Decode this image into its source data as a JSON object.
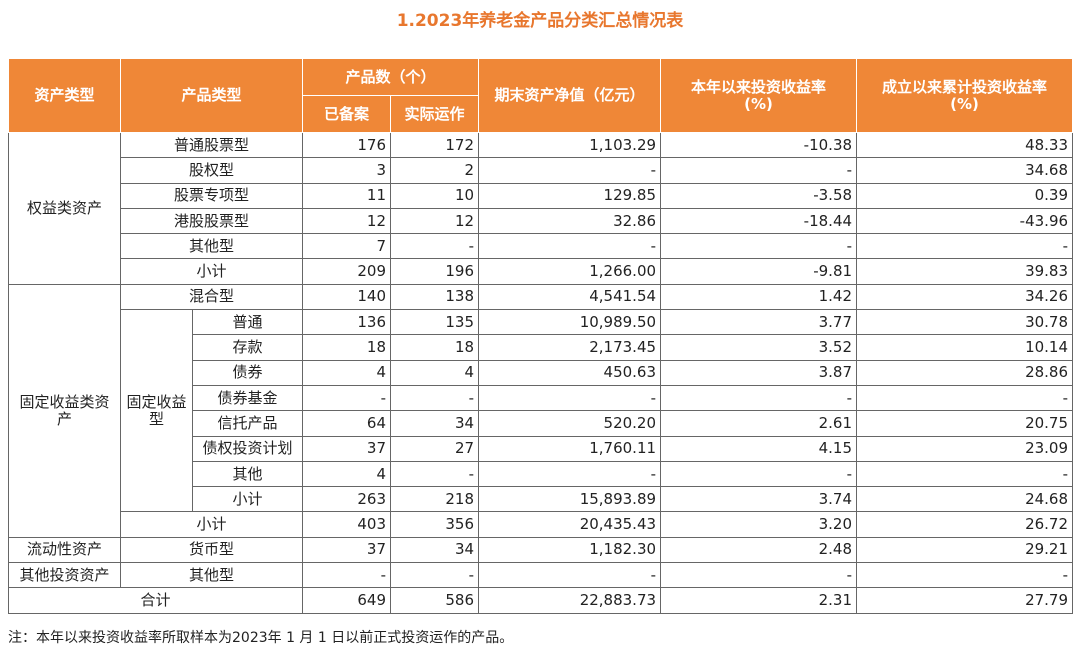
{
  "title": "1.2023年养老金产品分类汇总情况表",
  "header": {
    "asset_type": "资产类型",
    "product_type": "产品类型",
    "count": "产品数（个）",
    "filed": "已备案",
    "operating": "实际运作",
    "nav": "期末资产净值（亿元）",
    "ytd_return": "本年以来投资收益率",
    "ytd_unit": "(%)",
    "cum_return": "成立以来累计投资收益率",
    "cum_unit": "(%)"
  },
  "groups": {
    "equity": "权益类资产",
    "fixed_income": "固定收益类资产",
    "fixed_sub": "固定收益型",
    "liquidity": "流动性资产",
    "other": "其他投资资产"
  },
  "rows": [
    {
      "label": "普通股票型",
      "values": [
        "176",
        "172",
        "1,103.29",
        "-10.38",
        "48.33"
      ]
    },
    {
      "label": "股权型",
      "values": [
        "3",
        "2",
        "-",
        "-",
        "34.68"
      ]
    },
    {
      "label": "股票专项型",
      "values": [
        "11",
        "10",
        "129.85",
        "-3.58",
        "0.39"
      ]
    },
    {
      "label": "港股股票型",
      "values": [
        "12",
        "12",
        "32.86",
        "-18.44",
        "-43.96"
      ]
    },
    {
      "label": "其他型",
      "values": [
        "7",
        "-",
        "-",
        "-",
        "-"
      ]
    },
    {
      "label": "小计",
      "values": [
        "209",
        "196",
        "1,266.00",
        "-9.81",
        "39.83"
      ]
    },
    {
      "label": "混合型",
      "values": [
        "140",
        "138",
        "4,541.54",
        "1.42",
        "34.26"
      ]
    },
    {
      "label": "普通",
      "values": [
        "136",
        "135",
        "10,989.50",
        "3.77",
        "30.78"
      ]
    },
    {
      "label": "存款",
      "values": [
        "18",
        "18",
        "2,173.45",
        "3.52",
        "10.14"
      ]
    },
    {
      "label": "债券",
      "values": [
        "4",
        "4",
        "450.63",
        "3.87",
        "28.86"
      ]
    },
    {
      "label": "债券基金",
      "values": [
        "-",
        "-",
        "-",
        "-",
        "-"
      ]
    },
    {
      "label": "信托产品",
      "values": [
        "64",
        "34",
        "520.20",
        "2.61",
        "20.75"
      ]
    },
    {
      "label": "债权投资计划",
      "values": [
        "37",
        "27",
        "1,760.11",
        "4.15",
        "23.09"
      ]
    },
    {
      "label": "其他",
      "values": [
        "4",
        "-",
        "-",
        "-",
        "-"
      ]
    },
    {
      "label": "小计",
      "values": [
        "263",
        "218",
        "15,893.89",
        "3.74",
        "24.68"
      ]
    },
    {
      "label": "小计",
      "values": [
        "403",
        "356",
        "20,435.43",
        "3.20",
        "26.72"
      ]
    },
    {
      "label": "货币型",
      "values": [
        "37",
        "34",
        "1,182.30",
        "2.48",
        "29.21"
      ]
    },
    {
      "label": "其他型",
      "values": [
        "-",
        "-",
        "-",
        "-",
        "-"
      ]
    },
    {
      "label": "合计",
      "values": [
        "649",
        "586",
        "22,883.73",
        "2.31",
        "27.79"
      ]
    }
  ],
  "note": "注：本年以来投资收益率所取样本为2023年 1 月 1 日以前正式投资运作的产品。"
}
